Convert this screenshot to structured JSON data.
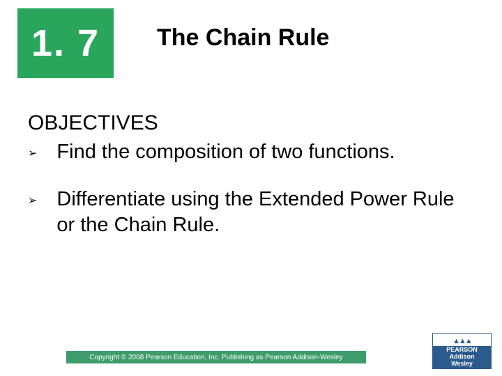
{
  "section": {
    "number": "1. 7",
    "box_color": "#29a65c",
    "text_color": "#ffffff"
  },
  "title": "The Chain Rule",
  "objectives": {
    "heading": "OBJECTIVES",
    "bullet_glyph": "➢",
    "items": [
      "Find the composition of two functions.",
      "Differentiate using the Extended Power Rule or the Chain Rule."
    ]
  },
  "footer": {
    "copyright": "Copyright © 2008 Pearson Education, Inc.  Publishing as Pearson Addison-Wesley",
    "bar_color": "#3d9c6a",
    "logo": {
      "brand_top": "PEARSON",
      "brand_bottom1": "Addison",
      "brand_bottom2": "Wesley",
      "bg_color": "#2b5a8c"
    }
  },
  "colors": {
    "background": "#ffffff",
    "text": "#000000"
  }
}
